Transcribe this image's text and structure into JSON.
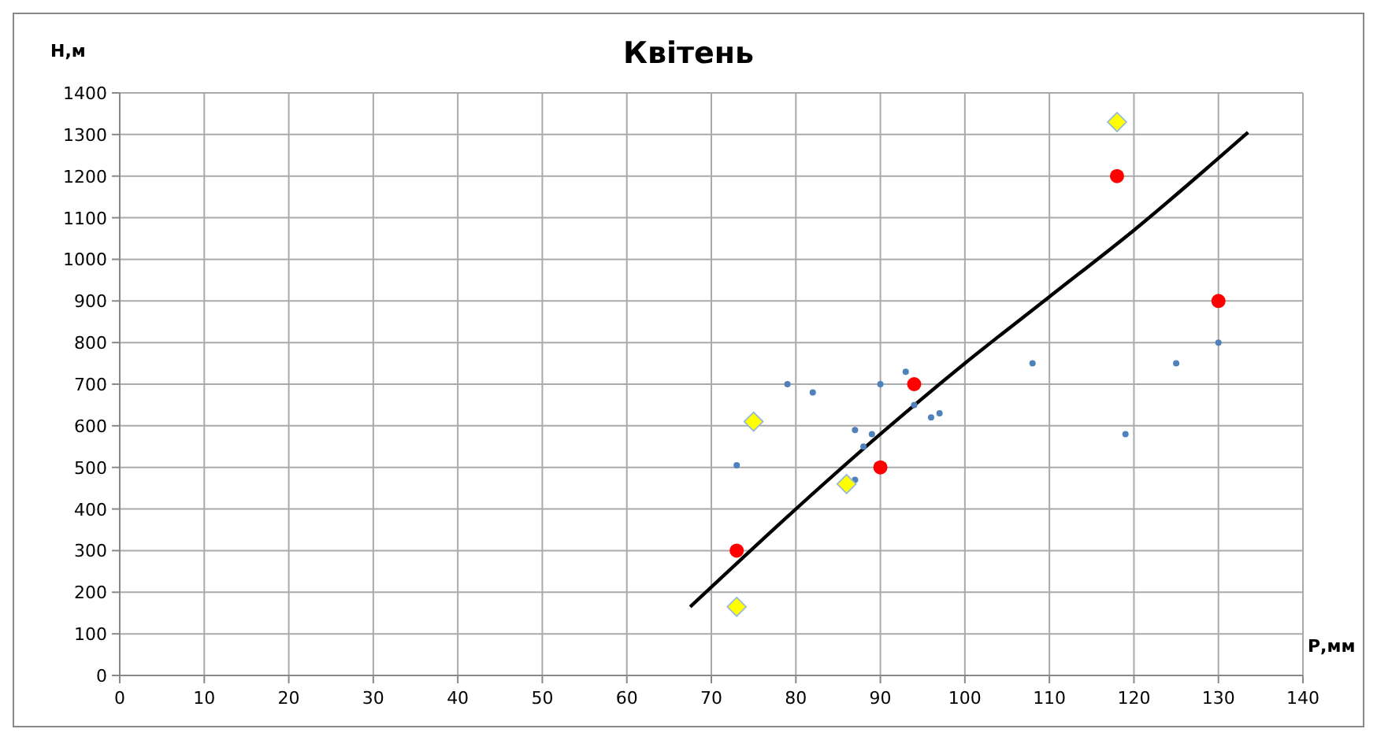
{
  "chart_data": {
    "type": "scatter",
    "title": "Квітень",
    "xlabel": "Р,мм",
    "ylabel": "Н,м",
    "xlim": [
      0,
      140
    ],
    "ylim": [
      0,
      1400
    ],
    "xticks": [
      0,
      10,
      20,
      30,
      40,
      50,
      60,
      70,
      80,
      90,
      100,
      110,
      120,
      130,
      140
    ],
    "yticks": [
      0,
      100,
      200,
      300,
      400,
      500,
      600,
      700,
      800,
      900,
      1000,
      1100,
      1200,
      1300,
      1400
    ],
    "grid": true,
    "series": [
      {
        "marker": "circle",
        "color": "#4f81bd",
        "x": [
          73,
          79,
          82,
          87,
          87,
          88,
          89,
          90,
          93,
          94,
          96,
          97,
          108,
          119,
          125,
          130
        ],
        "values": [
          505,
          700,
          680,
          590,
          470,
          550,
          580,
          700,
          730,
          650,
          620,
          630,
          750,
          580,
          750,
          800
        ]
      },
      {
        "type": "scatter",
        "marker": "circle",
        "color": "#ff0000",
        "x": [
          73,
          90,
          94,
          118,
          130
        ],
        "values": [
          300,
          500,
          700,
          1200,
          900
        ]
      },
      {
        "type": "scatter",
        "marker": "diamond",
        "color": "#ffff00",
        "x": [
          73,
          75,
          86,
          118
        ],
        "values": [
          165,
          610,
          460,
          1330
        ]
      },
      {
        "type": "line",
        "marker": "none",
        "color": "#000000",
        "x": [
          67.5,
          80,
          90,
          100,
          110,
          120,
          133.5
        ],
        "values": [
          165,
          400,
          580,
          750,
          910,
          1070,
          1305
        ]
      }
    ]
  }
}
